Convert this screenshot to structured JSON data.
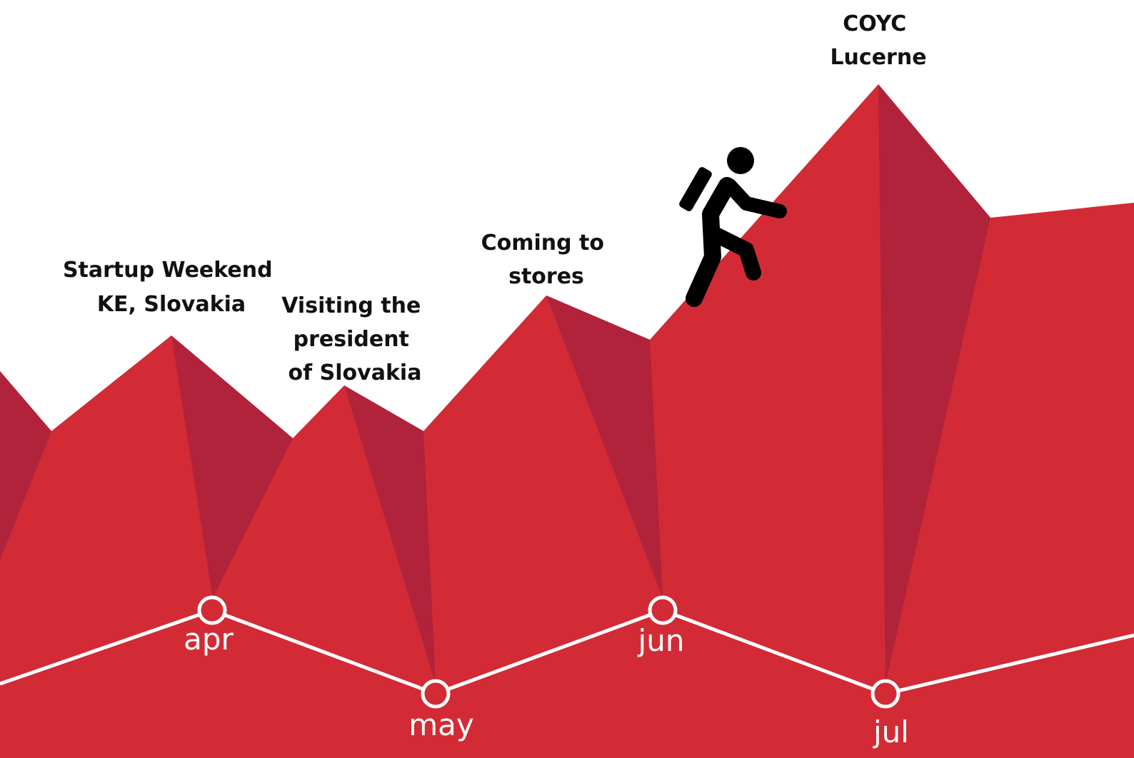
{
  "milestones": [
    {
      "lines": [
        "Startup Weekend",
        "KE, Slovakia"
      ]
    },
    {
      "lines": [
        "Visiting the",
        "president",
        "of Slovakia"
      ]
    },
    {
      "lines": [
        "Coming to",
        "stores"
      ]
    },
    {
      "lines": [
        "COYC",
        "Lucerne"
      ]
    }
  ],
  "months": [
    "apr",
    "may",
    "jun",
    "jul"
  ]
}
